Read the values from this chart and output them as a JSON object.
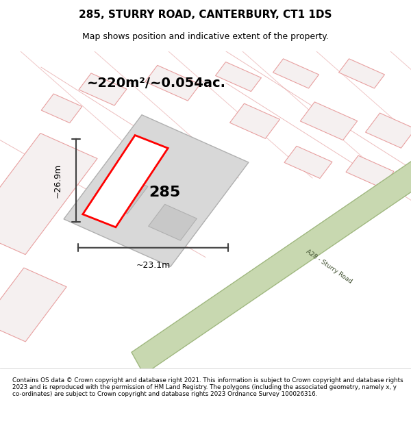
{
  "title": "285, STURRY ROAD, CANTERBURY, CT1 1DS",
  "subtitle": "Map shows position and indicative extent of the property.",
  "footer": "Contains OS data © Crown copyright and database right 2021. This information is subject to Crown copyright and database rights 2023 and is reproduced with the permission of HM Land Registry. The polygons (including the associated geometry, namely x, y co-ordinates) are subject to Crown copyright and database rights 2023 Ordnance Survey 100026316.",
  "area_label": "~220m²/~0.054ac.",
  "width_label": "~23.1m",
  "height_label": "~26.9m",
  "plot_number": "285",
  "bg_color": "#f0eeee",
  "map_bg": "#f5f4f2",
  "road_color": "#c8d8b0",
  "road_border": "#a0b880",
  "property_fill": "#e8e8e8",
  "property_edge": "#c0b8b8",
  "highlight_fill": "#ffffff",
  "highlight_edge": "#ff0000",
  "dim_line_color": "#404040",
  "text_color": "#000000"
}
